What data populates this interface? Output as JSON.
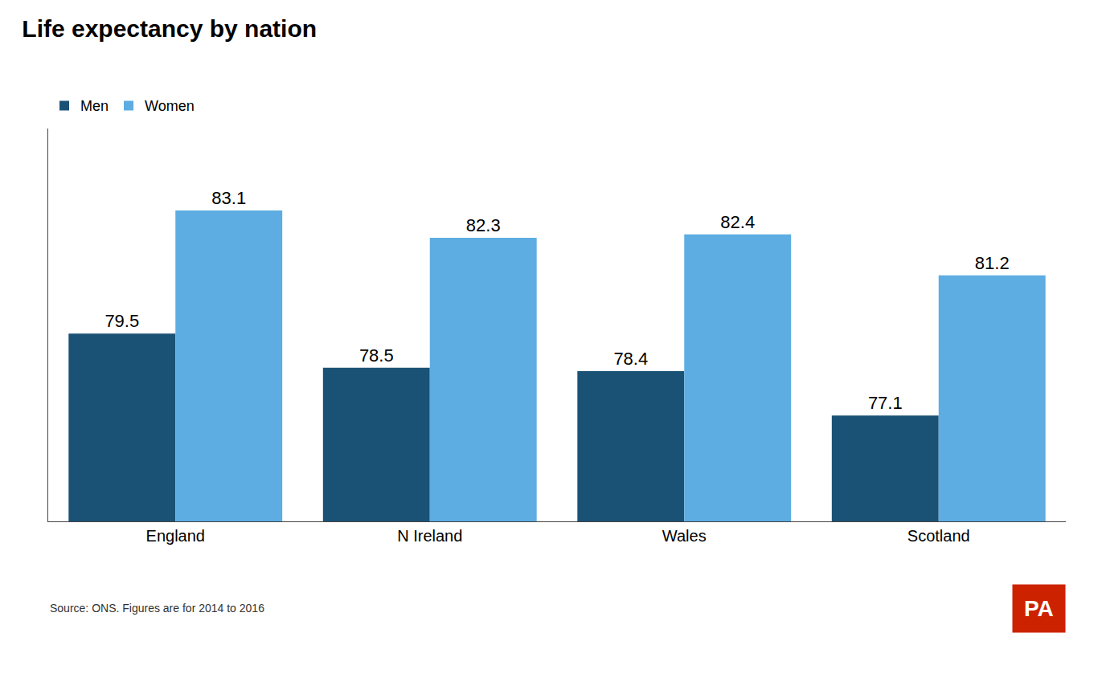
{
  "chart_data": {
    "type": "bar",
    "title": "Life expectancy by nation",
    "categories": [
      "England",
      "N Ireland",
      "Wales",
      "Scotland"
    ],
    "series": [
      {
        "name": "Men",
        "color": "#1a5276",
        "values": [
          79.5,
          78.5,
          78.4,
          77.1
        ]
      },
      {
        "name": "Women",
        "color": "#5dade2",
        "values": [
          83.1,
          82.3,
          82.4,
          81.2
        ]
      }
    ],
    "ylim": [
      74,
      85.5
    ],
    "grid": false,
    "legend": "upper left",
    "data_labels": true,
    "tick_labels": "x",
    "annotations": [
      {
        "text": "Source: ONS. Figures are for 2014 to 2016"
      },
      {
        "text": "PA",
        "color": "#cc2200"
      }
    ]
  }
}
